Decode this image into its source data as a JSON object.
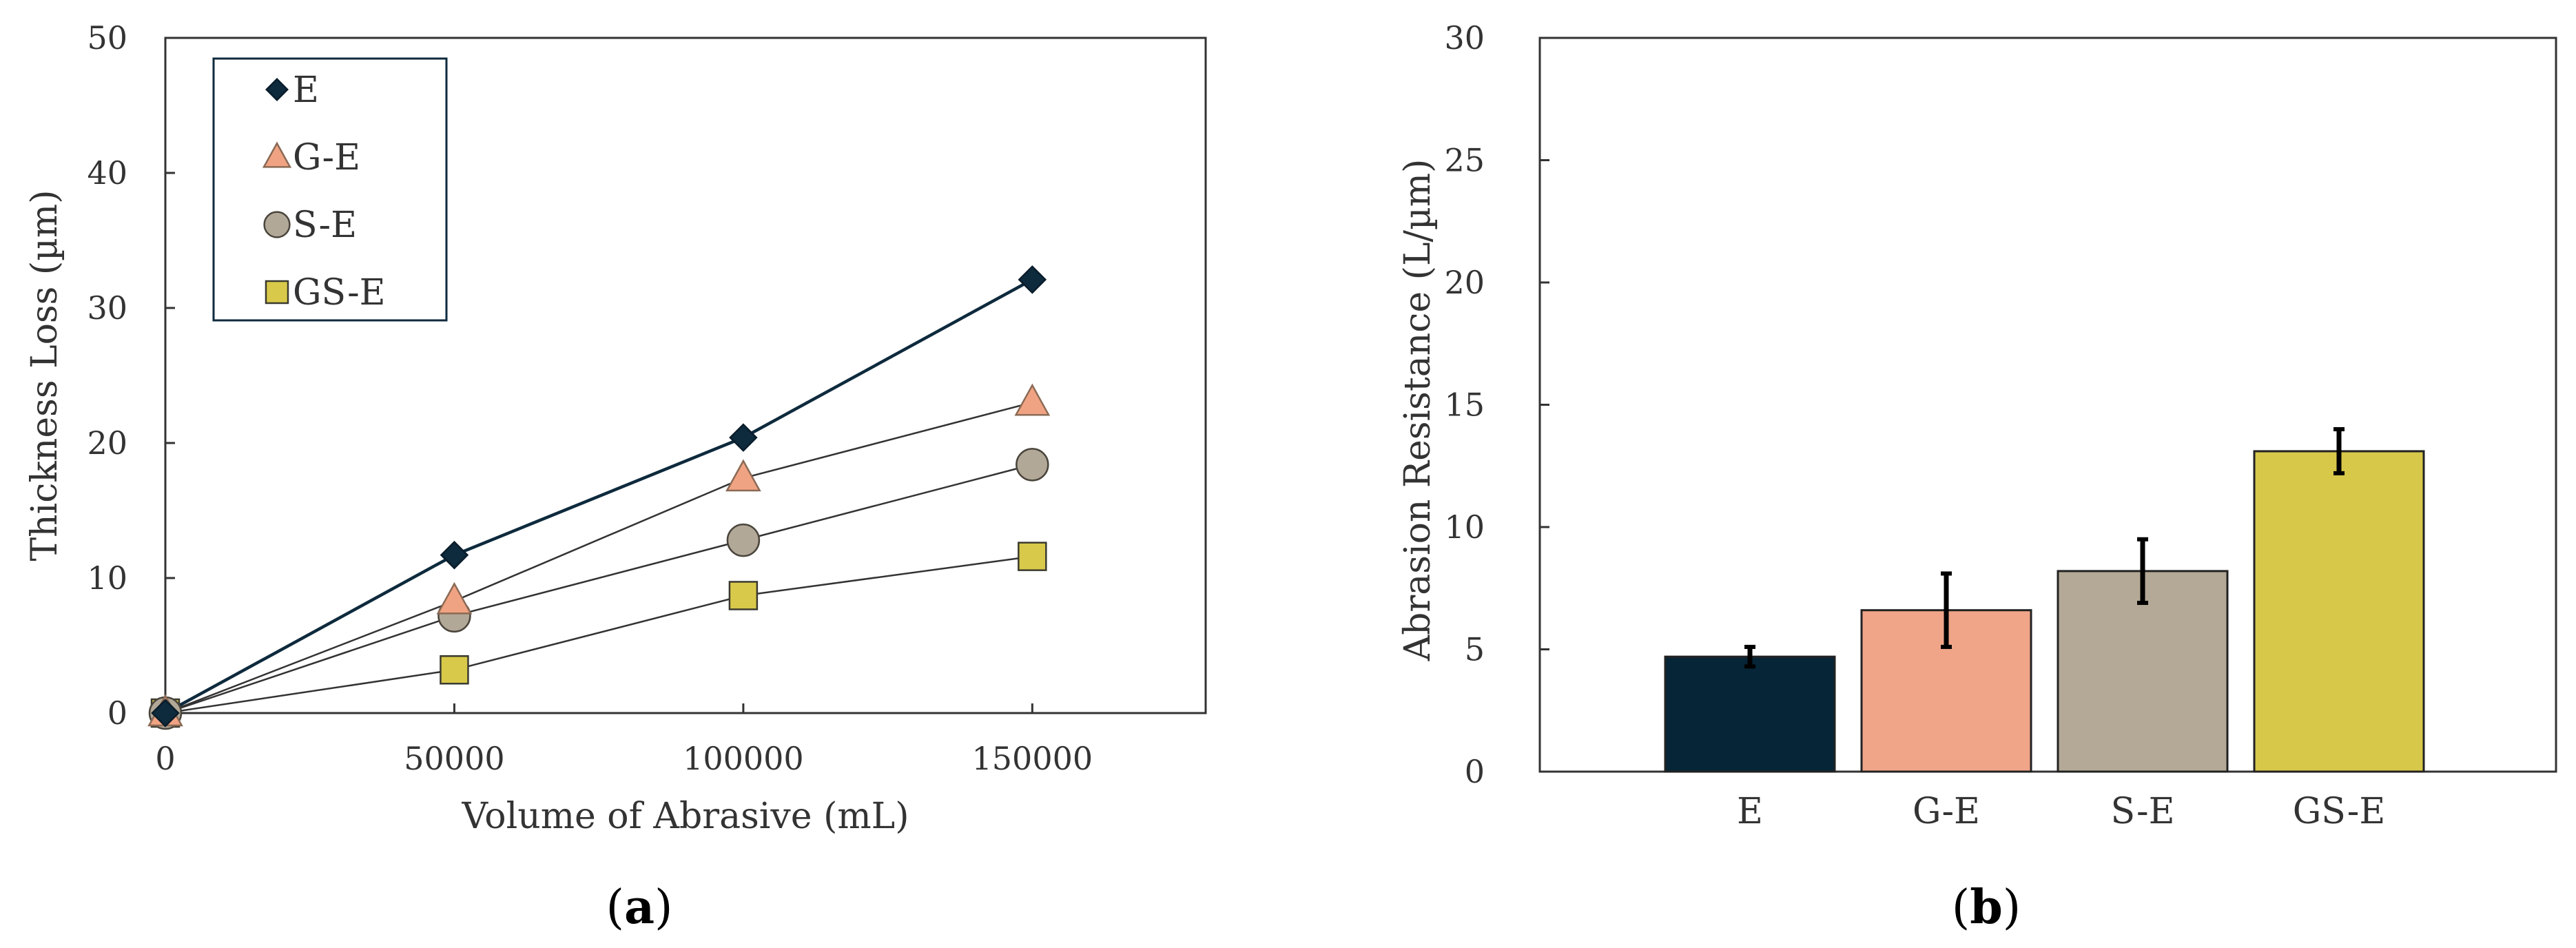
{
  "chart_data": [
    {
      "type": "line",
      "panel_label": "a",
      "title": "",
      "xlabel": "Volume of Abrasive (mL)",
      "ylabel": "Thickness Loss (µm)",
      "xlim": [
        0,
        180000
      ],
      "ylim": [
        0,
        50
      ],
      "xticks": [
        0,
        50000,
        100000,
        150000
      ],
      "xtick_labels": [
        "0",
        "50000",
        "100000",
        "150000"
      ],
      "yticks": [
        0,
        10,
        20,
        30,
        40,
        50
      ],
      "ytick_labels": [
        "0",
        "10",
        "20",
        "30",
        "40",
        "50"
      ],
      "x": [
        0,
        50000,
        100000,
        150000
      ],
      "legend_position": "top-left",
      "series": [
        {
          "name": "E",
          "marker": "diamond",
          "color": "#0e2a3d",
          "values": [
            0,
            11.7,
            20.4,
            32.1
          ]
        },
        {
          "name": "G-E",
          "marker": "triangle",
          "color": "#f0a383",
          "values": [
            0,
            8.3,
            17.4,
            23.0
          ]
        },
        {
          "name": "S-E",
          "marker": "circle",
          "color": "#b2a898",
          "values": [
            0,
            7.2,
            12.8,
            18.4
          ]
        },
        {
          "name": "GS-E",
          "marker": "square",
          "color": "#d9c94a",
          "values": [
            0,
            3.2,
            8.7,
            11.6
          ]
        }
      ]
    },
    {
      "type": "bar",
      "panel_label": "b",
      "title": "",
      "xlabel": "",
      "ylabel": "Abrasion Resistance (L/µm)",
      "ylim": [
        0,
        30
      ],
      "yticks": [
        0,
        5,
        10,
        15,
        20,
        25,
        30
      ],
      "ytick_labels": [
        "0",
        "5",
        "10",
        "15",
        "20",
        "25",
        "30"
      ],
      "categories": [
        "E",
        "G-E",
        "S-E",
        "GS-E"
      ],
      "values": [
        4.7,
        6.6,
        8.2,
        13.1
      ],
      "errors": [
        0.4,
        1.5,
        1.3,
        0.9
      ],
      "colors": [
        "#062537",
        "#f0a589",
        "#b3a996",
        "#d8c84a"
      ]
    }
  ]
}
